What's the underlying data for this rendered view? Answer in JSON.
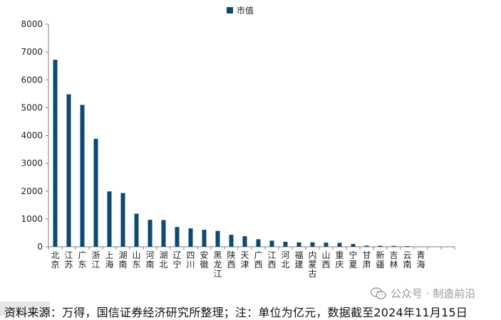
{
  "chart_data": {
    "type": "bar",
    "legend": [
      "市值"
    ],
    "legend_position": "top",
    "categories": [
      "北京",
      "江苏",
      "广东",
      "浙江",
      "上海",
      "湖南",
      "山东",
      "河南",
      "湖北",
      "辽宁",
      "四川",
      "安徽",
      "黑龙江",
      "陕西",
      "天津",
      "广西",
      "江西",
      "河北",
      "福建",
      "内蒙古",
      "山西",
      "重庆",
      "宁夏",
      "甘肃",
      "新疆",
      "吉林",
      "云南",
      "青海"
    ],
    "values": [
      6720,
      5480,
      5100,
      3880,
      1990,
      1930,
      1190,
      970,
      960,
      710,
      660,
      610,
      570,
      430,
      380,
      270,
      220,
      180,
      160,
      160,
      150,
      140,
      100,
      40,
      35,
      30,
      25,
      5
    ],
    "ylim": [
      0,
      8000
    ],
    "yticks": [
      "0",
      "1000",
      "2000",
      "3000",
      "4000",
      "5000",
      "6000",
      "7000",
      "8000"
    ],
    "grid": false,
    "bar_color": "#0b4a72"
  },
  "footer": {
    "source": "资料来源：万得，国信证券经济研究所整理；注：单位为亿元，数据截至2024年11月15日"
  },
  "watermark": {
    "text": "公众号 · 制造前沿"
  }
}
